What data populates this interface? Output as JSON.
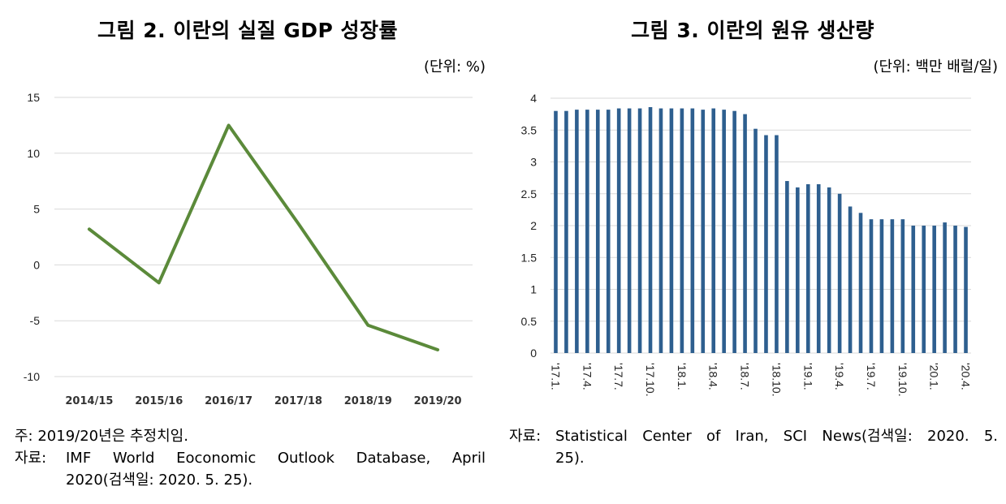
{
  "left": {
    "title": "그림 2. 이란의 실질 GDP 성장률",
    "unit": "(단위: %)",
    "note_label": "주:",
    "note_text": "2019/20년은 추정치임.",
    "source_label": "자료:",
    "source_line1": "IMF World Eoconomic Outlook Database, April",
    "source_line2": "2020(검색일: 2020. 5. 25)."
  },
  "right": {
    "title": "그림 3. 이란의 원유 생산량",
    "unit": "(단위: 백만 배럴/일)",
    "source_label": "자료:",
    "source_line1": "Statistical Center of Iran, SCI News(검색일: 2020. 5.",
    "source_line2": "25)."
  },
  "colors": {
    "line": "#5b8a3a",
    "bar": "#2e5f8f",
    "grid": "#d9d9d9"
  },
  "chart_data": [
    {
      "type": "line",
      "categories": [
        "2014/15",
        "2015/16",
        "2016/17",
        "2017/18",
        "2018/19",
        "2019/20"
      ],
      "series": [
        {
          "values": [
            3.2,
            -1.6,
            12.5,
            3.7,
            -5.4,
            -7.6
          ]
        }
      ],
      "yticks": [
        "15",
        "10",
        "5",
        "0",
        "-5",
        "-10"
      ],
      "ylim": [
        -10,
        15
      ],
      "grid": true
    },
    {
      "type": "bar",
      "categories": [
        "'17.1.",
        "",
        "",
        "'17.4.",
        "",
        "",
        "'17.7.",
        "",
        "",
        "'17.10.",
        "",
        "",
        "'18.1.",
        "",
        "",
        "'18.4.",
        "",
        "",
        "'18.7.",
        "",
        "",
        "'18.10.",
        "",
        "",
        "'19.1.",
        "",
        "",
        "'19.4.",
        "",
        "",
        "'19.7.",
        "",
        "",
        "'19.10.",
        "",
        "",
        "'20.1.",
        "",
        "",
        "'20.4."
      ],
      "series": [
        {
          "values": [
            3.8,
            3.8,
            3.82,
            3.82,
            3.82,
            3.82,
            3.84,
            3.84,
            3.84,
            3.86,
            3.84,
            3.84,
            3.84,
            3.84,
            3.82,
            3.84,
            3.82,
            3.8,
            3.75,
            3.52,
            3.42,
            3.42,
            2.7,
            2.6,
            2.65,
            2.65,
            2.6,
            2.5,
            2.3,
            2.2,
            2.1,
            2.1,
            2.1,
            2.1,
            2.0,
            2.0,
            2.0,
            2.05,
            2.0,
            1.98
          ]
        }
      ],
      "yticks": [
        "4",
        "3.5",
        "3",
        "2.5",
        "2",
        "1.5",
        "1",
        "0.5",
        "0"
      ],
      "ylim": [
        0,
        4
      ],
      "grid": true
    }
  ]
}
